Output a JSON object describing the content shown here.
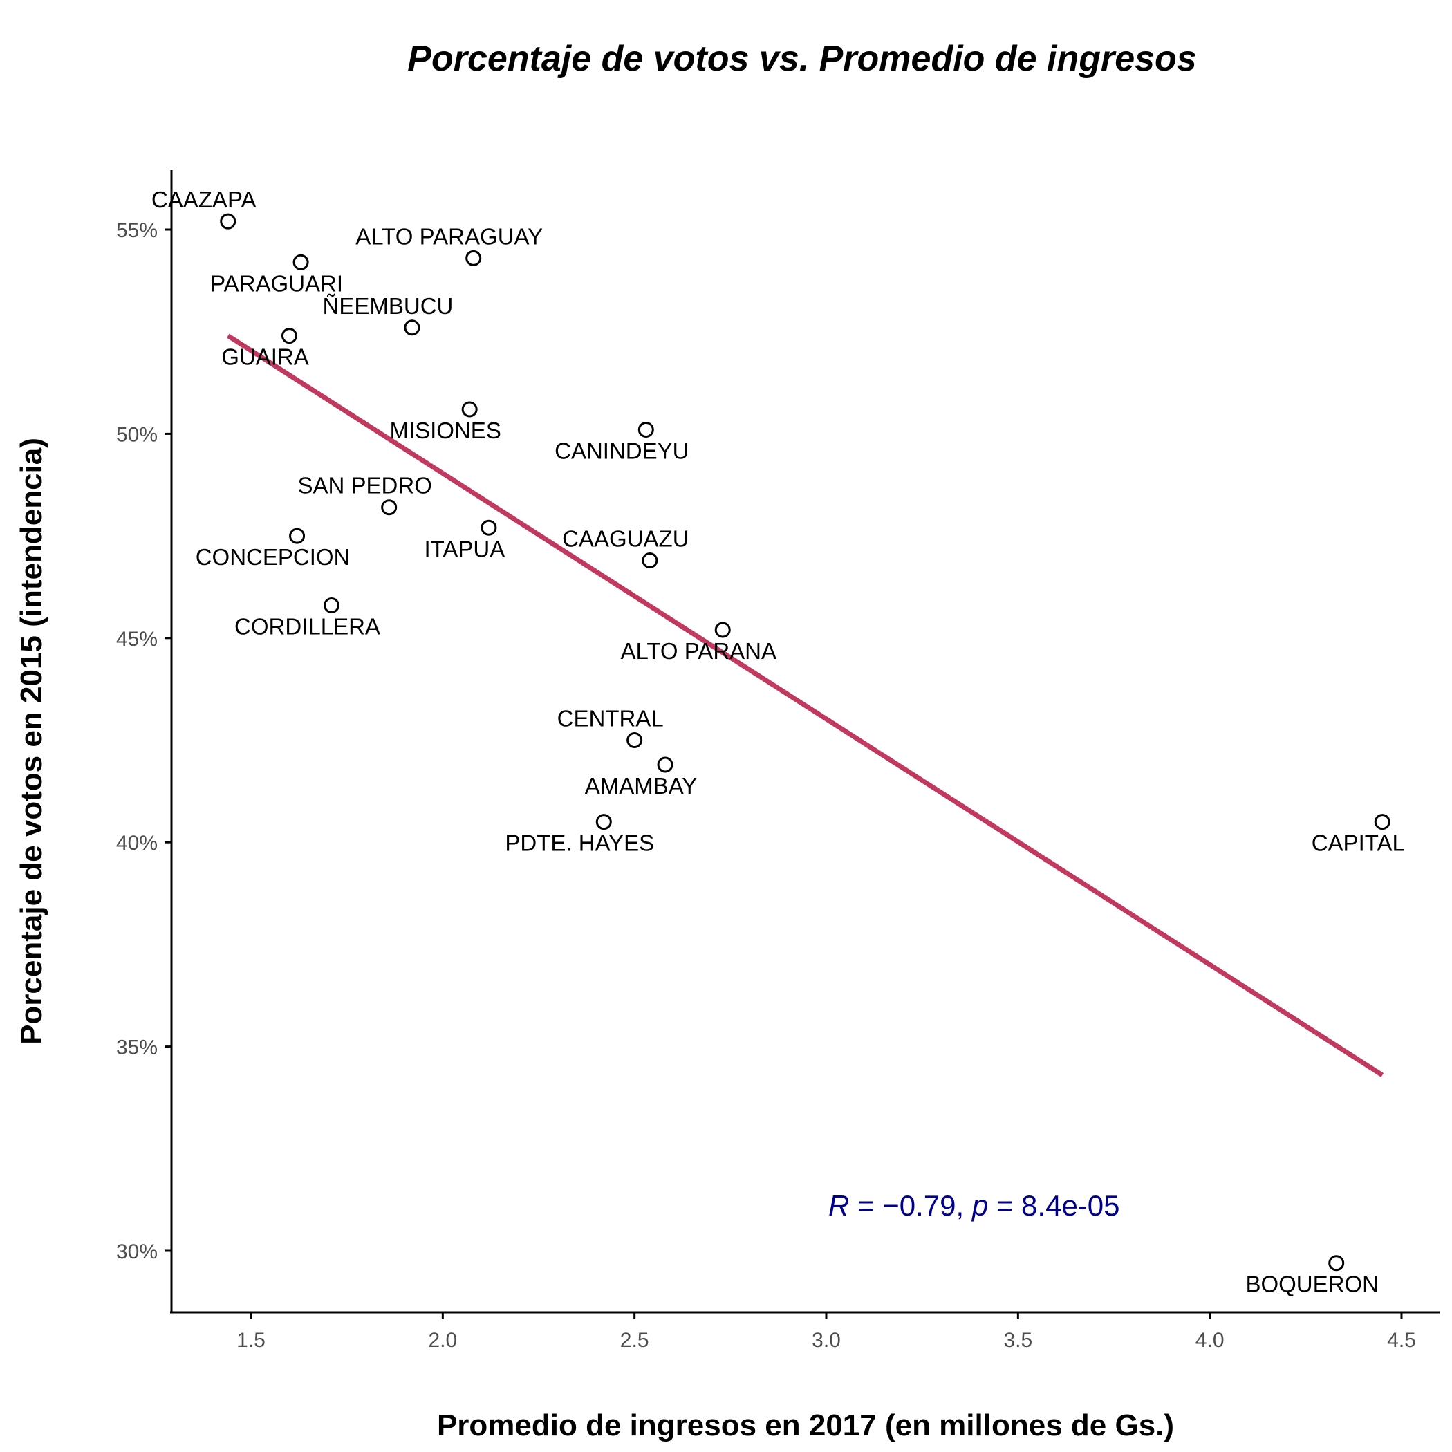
{
  "chart_data": {
    "type": "scatter",
    "title": "Porcentaje de votos vs. Promedio de ingresos",
    "xlabel": "Promedio de ingresos en 2017 (en millones de Gs.)",
    "ylabel": "Porcentaje de votos en 2015 (intendencia)",
    "xlim": [
      1.29,
      4.6
    ],
    "ylim": [
      0.285,
      0.563
    ],
    "x_ticks": [
      1.5,
      2.0,
      2.5,
      3.0,
      3.5,
      4.0,
      4.5
    ],
    "x_tick_labels": [
      "1.5",
      "2.0",
      "2.5",
      "3.0",
      "3.5",
      "4.0",
      "4.5"
    ],
    "y_ticks": [
      0.3,
      0.35,
      0.4,
      0.45,
      0.5,
      0.55
    ],
    "y_tick_labels": [
      "30%",
      "35%",
      "40%",
      "45%",
      "50%",
      "55%"
    ],
    "grid": false,
    "points": [
      {
        "label": "CAAZAPA",
        "x": 1.44,
        "y": 0.552,
        "label_pos": "above"
      },
      {
        "label": "ALTO PARAGUAY",
        "x": 2.08,
        "y": 0.543,
        "label_pos": "above"
      },
      {
        "label": "PARAGUARI",
        "x": 1.63,
        "y": 0.542,
        "label_pos": "below"
      },
      {
        "label": "ÑEEMBUCU",
        "x": 1.92,
        "y": 0.526,
        "label_pos": "above"
      },
      {
        "label": "GUAIRA",
        "x": 1.6,
        "y": 0.524,
        "label_pos": "below"
      },
      {
        "label": "MISIONES",
        "x": 2.07,
        "y": 0.506,
        "label_pos": "below"
      },
      {
        "label": "CANINDEYU",
        "x": 2.53,
        "y": 0.501,
        "label_pos": "below"
      },
      {
        "label": "SAN PEDRO",
        "x": 1.86,
        "y": 0.482,
        "label_pos": "above"
      },
      {
        "label": "ITAPUA",
        "x": 2.12,
        "y": 0.477,
        "label_pos": "below"
      },
      {
        "label": "CONCEPCION",
        "x": 1.62,
        "y": 0.475,
        "label_pos": "below"
      },
      {
        "label": "CAAGUAZU",
        "x": 2.54,
        "y": 0.469,
        "label_pos": "above"
      },
      {
        "label": "CORDILLERA",
        "x": 1.71,
        "y": 0.458,
        "label_pos": "below"
      },
      {
        "label": "ALTO PARANA",
        "x": 2.73,
        "y": 0.452,
        "label_pos": "below"
      },
      {
        "label": "CENTRAL",
        "x": 2.5,
        "y": 0.425,
        "label_pos": "above"
      },
      {
        "label": "AMAMBAY",
        "x": 2.58,
        "y": 0.419,
        "label_pos": "below"
      },
      {
        "label": "PDTE. HAYES",
        "x": 2.42,
        "y": 0.405,
        "label_pos": "below"
      },
      {
        "label": "CAPITAL",
        "x": 4.45,
        "y": 0.405,
        "label_pos": "below"
      },
      {
        "label": "BOQUERON",
        "x": 4.33,
        "y": 0.297,
        "label_pos": "below"
      }
    ],
    "regression_line": {
      "x": [
        1.44,
        4.45
      ],
      "y": [
        0.524,
        0.343
      ],
      "color": "#c2395f"
    },
    "annotation": {
      "R_symbol": "R",
      "R_rest": " = −0.79, ",
      "p_symbol": "p",
      "p_rest": " = 8.4e-05",
      "color": "#00008b"
    }
  }
}
